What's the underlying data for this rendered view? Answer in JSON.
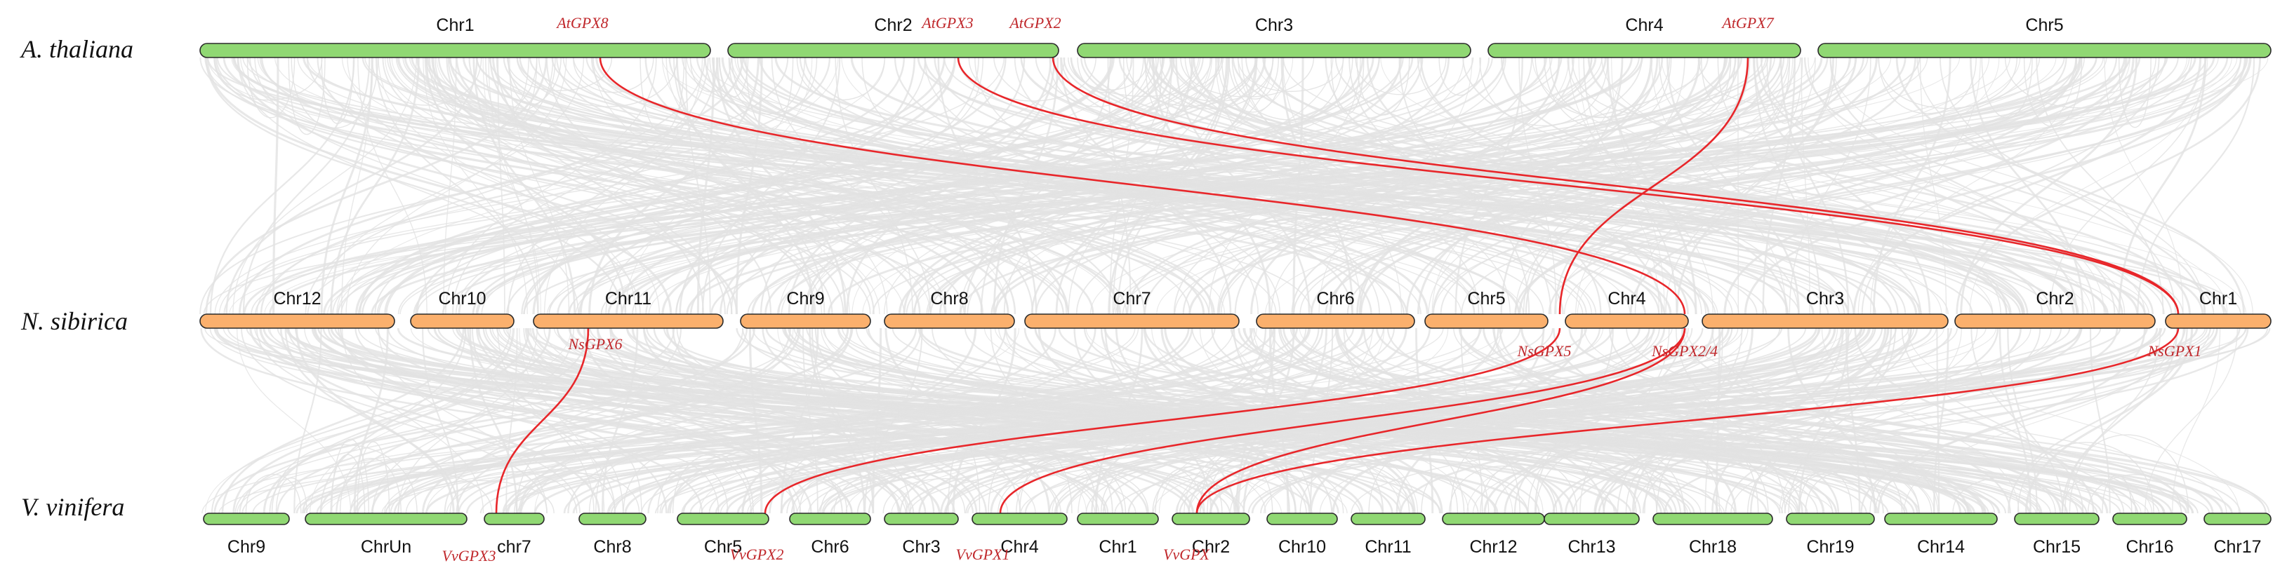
{
  "colors": {
    "green_chr": "#90d873",
    "orange_chr": "#fbb06d",
    "background_link": "#e2e2e2",
    "highlight_link": "#e8262a",
    "gene_text": "#c0282c"
  },
  "chart_data": {
    "type": "diagram",
    "tracks": [
      {
        "species": "A. thaliana",
        "color": "#90d873",
        "chromosomes": [
          "Chr1",
          "Chr2",
          "Chr3",
          "Chr4",
          "Chr5"
        ]
      },
      {
        "species": "N. sibirica",
        "color": "#fbb06d",
        "chromosomes": [
          "Chr12",
          "Chr10",
          "Chr11",
          "Chr9",
          "Chr8",
          "Chr7",
          "Chr6",
          "Chr5",
          "Chr4",
          "Chr3",
          "Chr2",
          "Chr1"
        ]
      },
      {
        "species": "V. vinifera",
        "color": "#90d873",
        "chromosomes": [
          "Chr9",
          "ChrUn",
          "chr7",
          "Chr8",
          "Chr5",
          "Chr6",
          "Chr3",
          "Chr4",
          "Chr1",
          "Chr2",
          "Chr10",
          "Chr11",
          "Chr12",
          "Chr13",
          "Chr18",
          "Chr19",
          "Chr14",
          "Chr15",
          "Chr16",
          "Chr17"
        ]
      }
    ],
    "genes": [
      {
        "id": "at8",
        "label": "AtGPX8",
        "track": 0,
        "chr": 0
      },
      {
        "id": "at3",
        "label": "AtGPX3",
        "track": 0,
        "chr": 1
      },
      {
        "id": "at2",
        "label": "AtGPX2",
        "track": 0,
        "chr": 1
      },
      {
        "id": "at7",
        "label": "AtGPX7",
        "track": 0,
        "chr": 3
      },
      {
        "id": "ns6",
        "label": "NsGPX6",
        "track": 1,
        "chr": 2
      },
      {
        "id": "ns5",
        "label": "NsGPX5",
        "track": 1,
        "chr": 7
      },
      {
        "id": "ns24",
        "label": "NsGPX2/4",
        "track": 1,
        "chr": 8
      },
      {
        "id": "ns1",
        "label": "NsGPX1",
        "track": 1,
        "chr": 11
      },
      {
        "id": "vv3",
        "label": "VvGPX3",
        "track": 2,
        "chr": 2
      },
      {
        "id": "vv2",
        "label": "VvGPX2",
        "track": 2,
        "chr": 4
      },
      {
        "id": "vv1",
        "label": "VvGPX1",
        "track": 2,
        "chr": 7
      },
      {
        "id": "vv",
        "label": "VvGPX",
        "track": 2,
        "chr": 9
      }
    ],
    "highlight_links": [
      {
        "from": "at8",
        "to": "ns24"
      },
      {
        "from": "at3",
        "to": "ns1"
      },
      {
        "from": "at2",
        "to": "ns1"
      },
      {
        "from": "at7",
        "to": "ns5"
      },
      {
        "from": "ns6",
        "to": "vv3"
      },
      {
        "from": "ns5",
        "to": "vv2"
      },
      {
        "from": "ns24",
        "to": "vv1"
      },
      {
        "from": "ns24",
        "to": "vv"
      },
      {
        "from": "ns1",
        "to": "vv"
      }
    ]
  }
}
